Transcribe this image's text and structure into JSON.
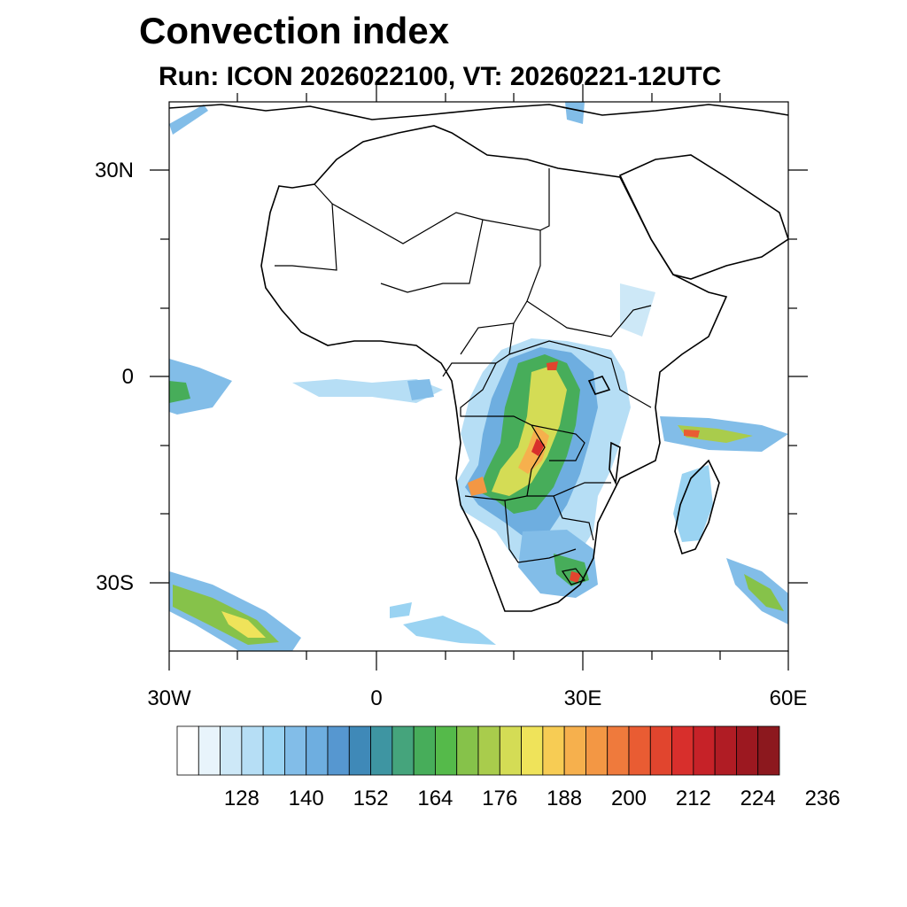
{
  "title": "Convection index",
  "subtitle": "Run: ICON 2026022100,  VT: 20260221-12UTC",
  "lat_labels": [
    "30N",
    "0",
    "30S"
  ],
  "lon_labels": [
    "30W",
    "0",
    "30E",
    "60E"
  ],
  "colorbar": {
    "labels": [
      "128",
      "140",
      "152",
      "164",
      "176",
      "188",
      "200",
      "212",
      "224",
      "236"
    ],
    "colors": [
      "#ffffff",
      "#e8f4fb",
      "#cde8f7",
      "#b6def5",
      "#9ad3f2",
      "#82bde8",
      "#6eaee0",
      "#5697d0",
      "#3f89b8",
      "#3e95a2",
      "#45a47c",
      "#47ad5a",
      "#55ba4a",
      "#86c24a",
      "#a9cc4c",
      "#d4dc55",
      "#efe35a",
      "#f7cc54",
      "#f6b04d",
      "#f39744",
      "#ef7a3c",
      "#e95c33",
      "#e1452e",
      "#d82f2c",
      "#c62228",
      "#b01c24",
      "#9c1820",
      "#8c181e"
    ]
  }
}
